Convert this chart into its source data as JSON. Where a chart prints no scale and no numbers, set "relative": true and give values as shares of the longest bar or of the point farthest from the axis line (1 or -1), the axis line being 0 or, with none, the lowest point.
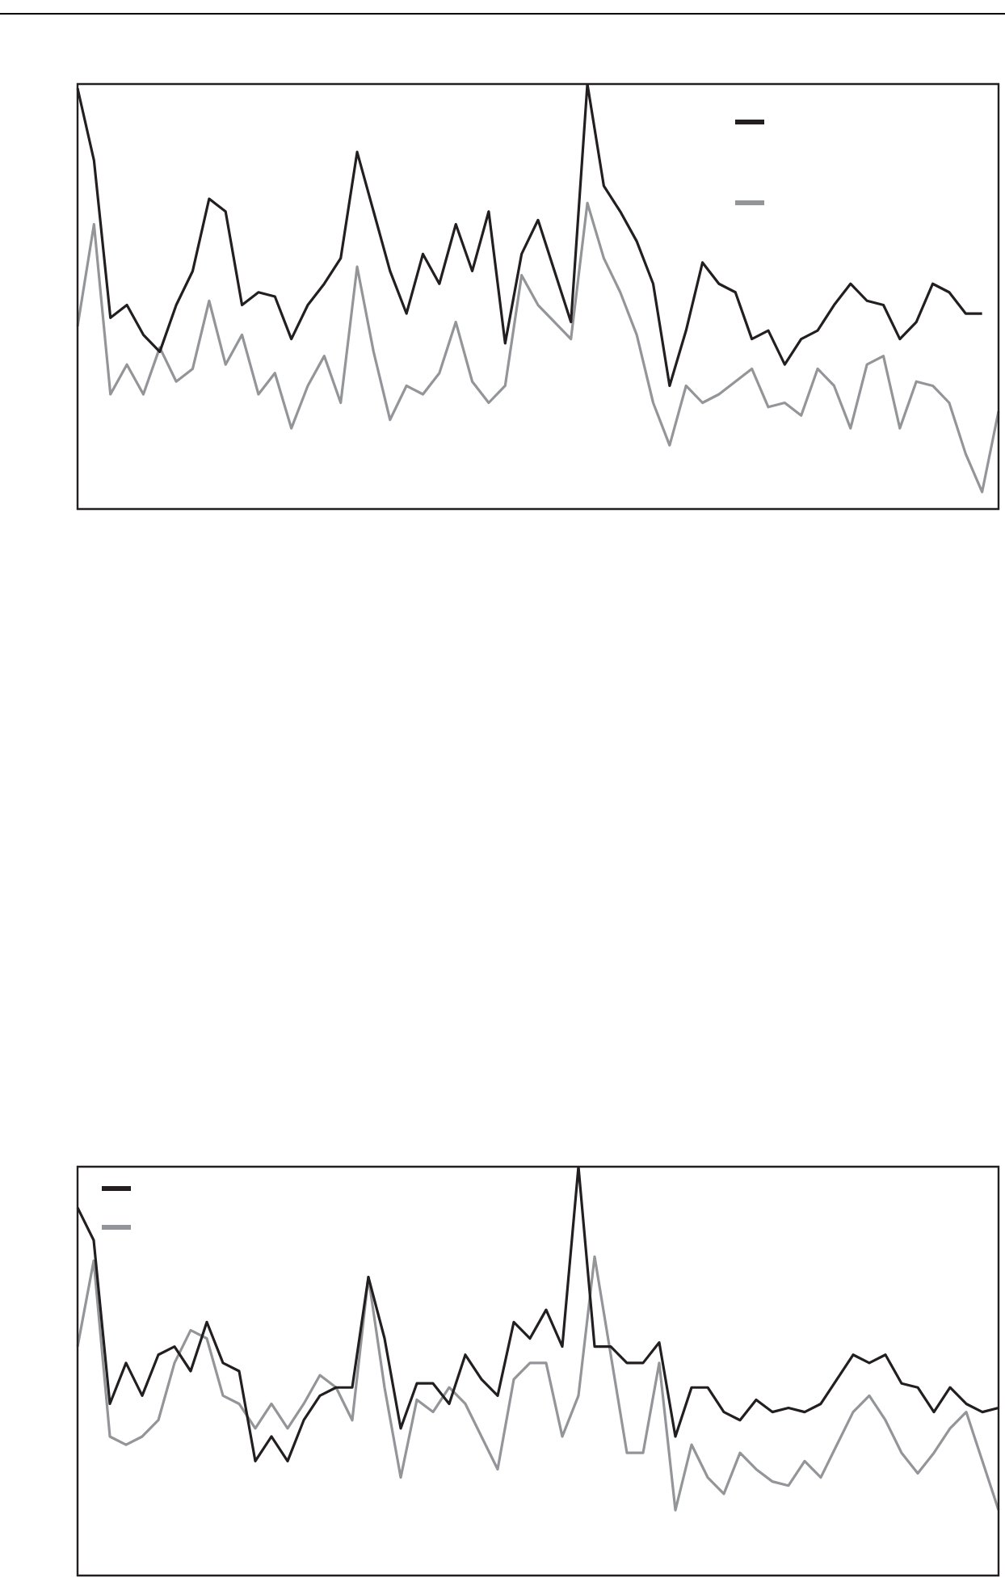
{
  "chart_data": [
    {
      "type": "line",
      "relative": true,
      "categories": [
        null,
        null,
        null,
        null,
        null,
        null,
        null,
        null,
        null,
        null,
        null,
        null,
        null,
        null,
        null,
        null,
        null,
        null,
        null,
        null,
        null,
        null,
        null,
        null,
        null,
        null,
        null,
        null,
        null,
        null,
        null,
        null,
        null,
        null,
        null,
        null,
        null,
        null,
        null,
        null,
        null,
        null,
        null,
        null,
        null,
        null,
        null,
        null,
        null,
        null,
        null,
        null,
        null,
        null,
        null,
        null,
        null
      ],
      "series": [
        {
          "color": "#231f20",
          "values": [
            0.99,
            0.82,
            0.45,
            0.48,
            0.41,
            0.37,
            0.48,
            0.56,
            0.73,
            0.7,
            0.48,
            0.51,
            0.5,
            0.4,
            0.48,
            0.53,
            0.59,
            0.84,
            0.7,
            0.56,
            0.46,
            0.6,
            0.53,
            0.67,
            0.56,
            0.7,
            0.39,
            0.6,
            0.68,
            0.56,
            0.44,
            1.0,
            0.76,
            0.7,
            0.63,
            0.53,
            0.29,
            0.42,
            0.58,
            0.53,
            0.51,
            0.4,
            0.42,
            0.34,
            0.4,
            0.42,
            0.48,
            0.53,
            0.49,
            0.48,
            0.4,
            0.44,
            0.53,
            0.51,
            0.46,
            0.46,
            null
          ]
        },
        {
          "color": "#939598",
          "values": [
            0.43,
            0.67,
            0.27,
            0.34,
            0.27,
            0.38,
            0.3,
            0.33,
            0.49,
            0.34,
            0.41,
            0.27,
            0.32,
            0.19,
            0.29,
            0.36,
            0.25,
            0.57,
            0.37,
            0.21,
            0.29,
            0.27,
            0.32,
            0.44,
            0.3,
            0.25,
            0.29,
            0.55,
            0.48,
            0.44,
            0.4,
            0.72,
            0.59,
            0.51,
            0.41,
            0.25,
            0.15,
            0.29,
            0.25,
            0.27,
            0.3,
            0.33,
            0.24,
            0.25,
            0.22,
            0.33,
            0.29,
            0.19,
            0.34,
            0.36,
            0.19,
            0.3,
            0.29,
            0.25,
            0.13,
            0.04,
            0.23
          ]
        }
      ]
    },
    {
      "type": "line",
      "relative": true,
      "categories": [
        null,
        null,
        null,
        null,
        null,
        null,
        null,
        null,
        null,
        null,
        null,
        null,
        null,
        null,
        null,
        null,
        null,
        null,
        null,
        null,
        null,
        null,
        null,
        null,
        null,
        null,
        null,
        null,
        null,
        null,
        null,
        null,
        null,
        null,
        null,
        null,
        null,
        null,
        null,
        null,
        null,
        null,
        null,
        null,
        null,
        null,
        null,
        null,
        null,
        null,
        null,
        null,
        null,
        null,
        null,
        null,
        null,
        null
      ],
      "series": [
        {
          "color": "#231f20",
          "values": [
            0.9,
            0.82,
            0.42,
            0.52,
            0.44,
            0.54,
            0.56,
            0.5,
            0.62,
            0.52,
            0.5,
            0.28,
            0.34,
            0.28,
            0.38,
            0.44,
            0.46,
            0.46,
            0.73,
            0.58,
            0.36,
            0.47,
            0.47,
            0.42,
            0.54,
            0.48,
            0.44,
            0.62,
            0.58,
            0.65,
            0.56,
            1.0,
            0.56,
            0.56,
            0.52,
            0.52,
            0.57,
            0.34,
            0.46,
            0.46,
            0.4,
            0.38,
            0.43,
            0.4,
            0.41,
            0.4,
            0.42,
            0.48,
            0.54,
            0.52,
            0.54,
            0.47,
            0.46,
            0.4,
            0.46,
            0.42,
            0.4,
            0.41
          ]
        },
        {
          "color": "#939598",
          "values": [
            0.56,
            0.77,
            0.34,
            0.32,
            0.34,
            0.38,
            0.52,
            0.6,
            0.58,
            0.44,
            0.42,
            0.36,
            0.42,
            0.36,
            0.42,
            0.49,
            0.46,
            0.38,
            0.73,
            0.46,
            0.24,
            0.43,
            0.4,
            0.46,
            0.42,
            0.34,
            0.26,
            0.48,
            0.52,
            0.52,
            0.34,
            0.44,
            0.78,
            0.54,
            0.3,
            0.3,
            0.52,
            0.16,
            0.32,
            0.24,
            0.2,
            0.3,
            0.26,
            0.23,
            0.22,
            0.28,
            0.24,
            0.32,
            0.4,
            0.44,
            0.38,
            0.3,
            0.25,
            0.3,
            0.36,
            0.4,
            0.28,
            0.16
          ]
        }
      ]
    }
  ]
}
